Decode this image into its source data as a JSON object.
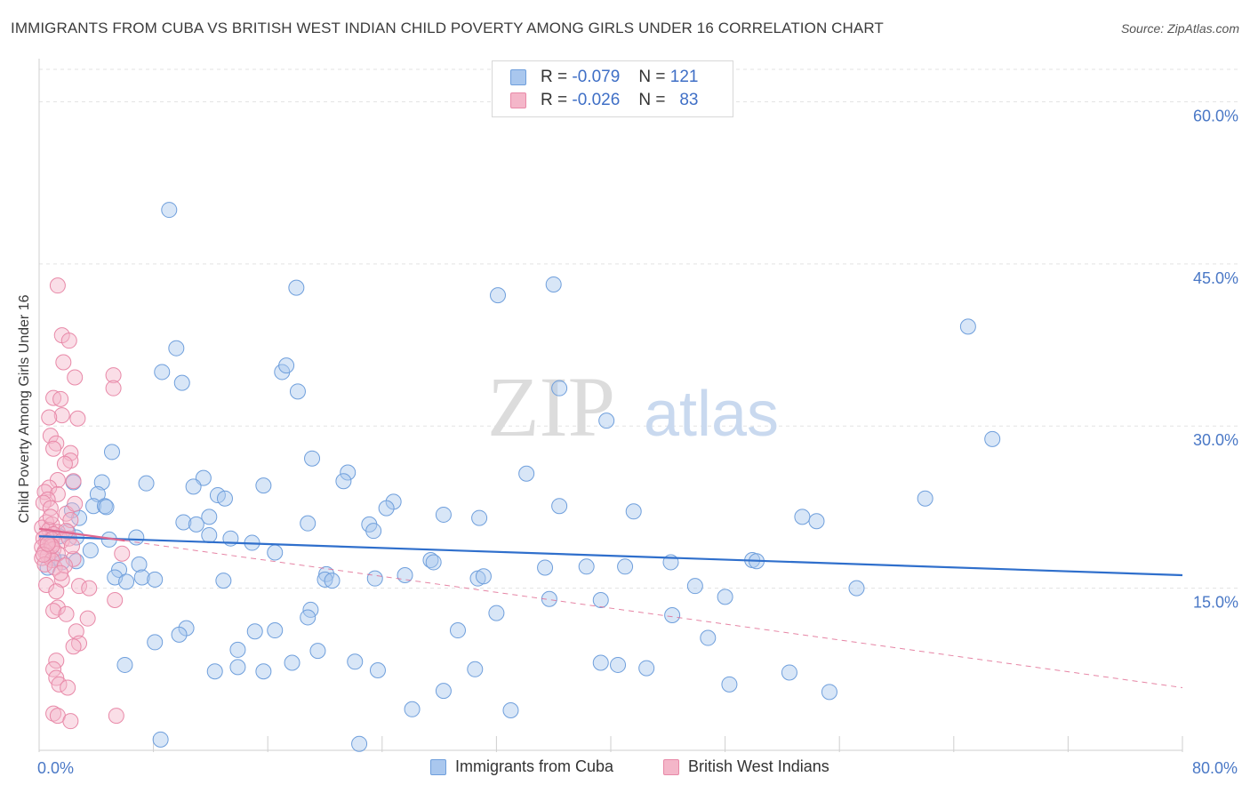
{
  "title": "IMMIGRANTS FROM CUBA VS BRITISH WEST INDIAN CHILD POVERTY AMONG GIRLS UNDER 16 CORRELATION CHART",
  "source": "Source: ZipAtlas.com",
  "watermark": {
    "zip": "ZIP",
    "atlas": "atlas"
  },
  "legend_stats": [
    {
      "r_label": "R =",
      "r_value": "-0.079",
      "n_label": "N =",
      "n_value": "121",
      "color": "#a9c7ee"
    },
    {
      "r_label": "R =",
      "r_value": "-0.026",
      "n_label": "N =",
      "n_value": "83",
      "color": "#f4b6c9"
    }
  ],
  "chart_data": {
    "type": "scatter",
    "title": "IMMIGRANTS FROM CUBA VS BRITISH WEST INDIAN CHILD POVERTY AMONG GIRLS UNDER 16 CORRELATION CHART",
    "xlabel": "",
    "ylabel": "Child Poverty Among Girls Under 16",
    "xlim": [
      0,
      80
    ],
    "ylim": [
      0,
      63
    ],
    "x_tick_labels": [
      "0.0%",
      "80.0%"
    ],
    "y_ticks": [
      15,
      30,
      45,
      60
    ],
    "y_tick_labels": [
      "15.0%",
      "30.0%",
      "45.0%",
      "60.0%"
    ],
    "grid": true,
    "legend_position": "top-center",
    "series": [
      {
        "name": "Immigrants from Cuba",
        "color": "#a9c7ee",
        "stroke": "#6f9fdc",
        "trend": {
          "x": [
            0,
            80
          ],
          "y": [
            19.8,
            16.2
          ],
          "color": "#2f6fcc",
          "style": "solid"
        },
        "points": [
          [
            9.1,
            50.0
          ],
          [
            18.0,
            42.8
          ],
          [
            32.1,
            42.1
          ],
          [
            36.0,
            43.1
          ],
          [
            65.0,
            39.2
          ],
          [
            9.6,
            37.2
          ],
          [
            8.6,
            35.0
          ],
          [
            17.0,
            35.0
          ],
          [
            17.3,
            35.6
          ],
          [
            10.0,
            34.0
          ],
          [
            18.1,
            33.2
          ],
          [
            36.4,
            33.5
          ],
          [
            39.7,
            30.5
          ],
          [
            66.7,
            28.8
          ],
          [
            5.1,
            27.6
          ],
          [
            19.1,
            27.0
          ],
          [
            11.5,
            25.2
          ],
          [
            21.6,
            25.7
          ],
          [
            34.1,
            25.6
          ],
          [
            2.4,
            24.8
          ],
          [
            4.4,
            24.8
          ],
          [
            7.5,
            24.7
          ],
          [
            10.8,
            24.4
          ],
          [
            15.7,
            24.5
          ],
          [
            21.3,
            24.9
          ],
          [
            12.5,
            23.6
          ],
          [
            13.0,
            23.3
          ],
          [
            4.1,
            23.7
          ],
          [
            62.0,
            23.3
          ],
          [
            3.8,
            22.6
          ],
          [
            4.6,
            22.6
          ],
          [
            4.7,
            22.5
          ],
          [
            2.3,
            22.2
          ],
          [
            2.8,
            21.5
          ],
          [
            24.8,
            23.0
          ],
          [
            24.3,
            22.4
          ],
          [
            36.4,
            22.6
          ],
          [
            41.6,
            22.1
          ],
          [
            28.3,
            21.8
          ],
          [
            30.8,
            21.5
          ],
          [
            11.9,
            21.6
          ],
          [
            10.1,
            21.1
          ],
          [
            11.0,
            20.9
          ],
          [
            18.8,
            21.0
          ],
          [
            23.1,
            20.9
          ],
          [
            23.4,
            20.3
          ],
          [
            53.4,
            21.6
          ],
          [
            54.4,
            21.2
          ],
          [
            2.0,
            20.2
          ],
          [
            1.4,
            19.8
          ],
          [
            2.6,
            19.7
          ],
          [
            6.8,
            19.7
          ],
          [
            11.9,
            19.9
          ],
          [
            13.4,
            19.6
          ],
          [
            14.9,
            19.2
          ],
          [
            16.5,
            18.3
          ],
          [
            3.6,
            18.5
          ],
          [
            1.6,
            17.4
          ],
          [
            1.0,
            17.8
          ],
          [
            2.6,
            17.5
          ],
          [
            0.6,
            16.9
          ],
          [
            7.0,
            17.2
          ],
          [
            5.6,
            16.7
          ],
          [
            27.4,
            17.6
          ],
          [
            27.6,
            17.4
          ],
          [
            35.4,
            16.9
          ],
          [
            38.3,
            17.0
          ],
          [
            41.0,
            17.0
          ],
          [
            44.2,
            17.4
          ],
          [
            49.9,
            17.6
          ],
          [
            50.2,
            17.5
          ],
          [
            5.3,
            16.0
          ],
          [
            6.1,
            15.6
          ],
          [
            7.2,
            16.0
          ],
          [
            8.1,
            15.8
          ],
          [
            20.1,
            16.3
          ],
          [
            20.0,
            15.8
          ],
          [
            20.5,
            15.7
          ],
          [
            23.5,
            15.9
          ],
          [
            25.6,
            16.2
          ],
          [
            30.7,
            15.9
          ],
          [
            31.1,
            16.1
          ],
          [
            45.9,
            15.2
          ],
          [
            57.2,
            15.0
          ],
          [
            35.7,
            14.0
          ],
          [
            39.3,
            13.9
          ],
          [
            48.0,
            14.2
          ],
          [
            12.9,
            15.7
          ],
          [
            19.0,
            13.0
          ],
          [
            18.8,
            12.3
          ],
          [
            32.0,
            12.7
          ],
          [
            44.3,
            12.5
          ],
          [
            10.3,
            11.3
          ],
          [
            15.1,
            11.0
          ],
          [
            9.8,
            10.7
          ],
          [
            16.5,
            11.1
          ],
          [
            29.3,
            11.1
          ],
          [
            8.1,
            10.0
          ],
          [
            13.9,
            9.3
          ],
          [
            46.8,
            10.4
          ],
          [
            19.5,
            9.2
          ],
          [
            6.0,
            7.9
          ],
          [
            12.3,
            7.3
          ],
          [
            13.9,
            7.7
          ],
          [
            15.7,
            7.3
          ],
          [
            17.7,
            8.1
          ],
          [
            22.1,
            8.2
          ],
          [
            23.7,
            7.4
          ],
          [
            30.5,
            7.5
          ],
          [
            39.3,
            8.1
          ],
          [
            40.5,
            7.9
          ],
          [
            42.5,
            7.6
          ],
          [
            52.5,
            7.2
          ],
          [
            28.3,
            5.5
          ],
          [
            48.3,
            6.1
          ],
          [
            55.3,
            5.4
          ],
          [
            26.1,
            3.8
          ],
          [
            33.0,
            3.7
          ],
          [
            8.5,
            1.0
          ],
          [
            22.4,
            0.6
          ],
          [
            4.9,
            19.5
          ]
        ]
      },
      {
        "name": "British West Indians",
        "color": "#f4b6c9",
        "stroke": "#e889a8",
        "trend": {
          "x": [
            0,
            80
          ],
          "y": [
            20.5,
            5.8
          ],
          "color": "#e0668f",
          "style": "dashed",
          "solid_until": 6
        },
        "points": [
          [
            1.3,
            43.0
          ],
          [
            1.6,
            38.4
          ],
          [
            2.1,
            37.9
          ],
          [
            1.7,
            35.9
          ],
          [
            2.5,
            34.5
          ],
          [
            5.2,
            34.7
          ],
          [
            5.2,
            33.5
          ],
          [
            1.0,
            32.6
          ],
          [
            1.5,
            32.5
          ],
          [
            1.6,
            31.0
          ],
          [
            2.7,
            30.7
          ],
          [
            0.7,
            30.8
          ],
          [
            0.8,
            29.1
          ],
          [
            1.2,
            28.4
          ],
          [
            1.0,
            27.9
          ],
          [
            2.2,
            27.5
          ],
          [
            2.2,
            26.8
          ],
          [
            1.8,
            26.5
          ],
          [
            1.3,
            25.0
          ],
          [
            2.4,
            24.9
          ],
          [
            0.7,
            24.3
          ],
          [
            0.4,
            23.9
          ],
          [
            1.3,
            23.7
          ],
          [
            0.6,
            23.2
          ],
          [
            0.3,
            22.9
          ],
          [
            0.8,
            22.4
          ],
          [
            1.9,
            21.9
          ],
          [
            2.2,
            21.3
          ],
          [
            0.5,
            21.1
          ],
          [
            0.9,
            20.9
          ],
          [
            0.2,
            20.6
          ],
          [
            0.7,
            20.4
          ],
          [
            1.3,
            20.2
          ],
          [
            1.0,
            20.0
          ],
          [
            0.5,
            19.8
          ],
          [
            0.3,
            19.6
          ],
          [
            0.9,
            19.5
          ],
          [
            1.6,
            19.4
          ],
          [
            0.5,
            19.2
          ],
          [
            0.8,
            19.0
          ],
          [
            0.2,
            18.8
          ],
          [
            1.0,
            18.6
          ],
          [
            0.4,
            18.4
          ],
          [
            1.3,
            18.2
          ],
          [
            0.6,
            18.0
          ],
          [
            0.2,
            17.8
          ],
          [
            0.9,
            17.6
          ],
          [
            2.4,
            17.7
          ],
          [
            5.8,
            18.2
          ],
          [
            0.4,
            17.2
          ],
          [
            1.1,
            16.9
          ],
          [
            1.6,
            15.8
          ],
          [
            0.5,
            15.3
          ],
          [
            2.8,
            15.2
          ],
          [
            3.5,
            15.0
          ],
          [
            1.2,
            14.7
          ],
          [
            5.3,
            13.9
          ],
          [
            1.3,
            13.2
          ],
          [
            1.0,
            12.9
          ],
          [
            1.9,
            12.6
          ],
          [
            3.4,
            12.2
          ],
          [
            2.6,
            11.0
          ],
          [
            2.8,
            9.9
          ],
          [
            2.4,
            9.6
          ],
          [
            1.2,
            8.3
          ],
          [
            1.0,
            7.5
          ],
          [
            1.2,
            6.7
          ],
          [
            1.4,
            6.1
          ],
          [
            2.0,
            5.8
          ],
          [
            1.0,
            3.4
          ],
          [
            1.3,
            3.2
          ],
          [
            2.2,
            2.7
          ],
          [
            5.4,
            3.2
          ],
          [
            1.8,
            17.1
          ],
          [
            2.1,
            19.6
          ],
          [
            1.9,
            20.3
          ],
          [
            0.9,
            18.9
          ],
          [
            0.3,
            18.1
          ],
          [
            2.3,
            18.9
          ],
          [
            1.5,
            16.4
          ],
          [
            0.8,
            21.6
          ],
          [
            2.5,
            22.8
          ],
          [
            0.6,
            19.1
          ]
        ]
      }
    ]
  }
}
